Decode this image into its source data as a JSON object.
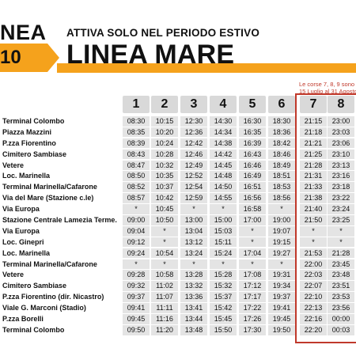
{
  "header": {
    "linea_word": "NEA",
    "badge_number": "10",
    "subtitle": "ATTIVA SOLO NEL PERIODO ESTIVO",
    "title": "LINEA MARE",
    "note_line1": "Le corse 7, 8, 9 sono v",
    "note_line2": "15 Luglio al 31 Agosto",
    "accent_color": "#f5a21c",
    "highlight_color": "#c0392b"
  },
  "columns": [
    "1",
    "2",
    "3",
    "4",
    "5",
    "6",
    "7",
    "8"
  ],
  "stops": [
    "Terminal Colombo",
    "Piazza Mazzini",
    "P.zza Fiorentino",
    "Cimitero Sambiase",
    "Vetere",
    "Loc. Marinella",
    "Terminal  Marinella/Cafarone",
    "Via del Mare (Stazione c.le)",
    "Via Europa",
    "Stazione Centrale Lamezia Terme.",
    "Via Europa",
    "Loc. Ginepri",
    "Loc. Marinella",
    "Terminal  Marinella/Cafarone",
    "Vetere",
    "Cimitero Sambiase",
    "P.zza Fiorentino (dir. Nicastro)",
    "Viale G. Marconi (Stadio)",
    "P.zza Borelli",
    "Terminal Colombo"
  ],
  "times": [
    [
      "08:30",
      "08:35",
      "08:39",
      "08:43",
      "08:47",
      "08:50",
      "08:52",
      "08:57",
      "*",
      "09:00",
      "09:04",
      "09:12",
      "09:24",
      "*",
      "09:28",
      "09:32",
      "09:37",
      "09:41",
      "09:45",
      "09:50"
    ],
    [
      "10:15",
      "10:20",
      "10:24",
      "10:28",
      "10:32",
      "10:35",
      "10:37",
      "10:42",
      "10:45",
      "10:50",
      "*",
      "*",
      "10:54",
      "*",
      "10:58",
      "11:02",
      "11:07",
      "11:11",
      "11:16",
      "11:20"
    ],
    [
      "12:30",
      "12:36",
      "12:42",
      "12:46",
      "12:49",
      "12:52",
      "12:54",
      "12:59",
      "*",
      "13:00",
      "13:04",
      "13:12",
      "13:24",
      "*",
      "13:28",
      "13:32",
      "13:36",
      "13:41",
      "13:44",
      "13:48"
    ],
    [
      "14:30",
      "14:34",
      "14:38",
      "14:42",
      "14:45",
      "14:48",
      "14:50",
      "14:55",
      "*",
      "15:00",
      "15:03",
      "15:11",
      "15:24",
      "*",
      "15:28",
      "15:32",
      "15:37",
      "15:42",
      "15:45",
      "15:50"
    ],
    [
      "16:30",
      "16:35",
      "16:39",
      "16:43",
      "16:46",
      "16:49",
      "16:51",
      "16:56",
      "16:58",
      "17:00",
      "*",
      "*",
      "17:04",
      "*",
      "17:08",
      "17:12",
      "17:17",
      "17:22",
      "17:26",
      "17:30"
    ],
    [
      "18:30",
      "18:36",
      "18:42",
      "18:46",
      "18:49",
      "18:51",
      "18:53",
      "18:56",
      "*",
      "19:00",
      "19:07",
      "19:15",
      "19:27",
      "*",
      "19:31",
      "19:34",
      "19:37",
      "19:41",
      "19:45",
      "19:50"
    ],
    [
      "21:15",
      "21:18",
      "21:21",
      "21:25",
      "21:28",
      "21:31",
      "21:33",
      "21:38",
      "21:40",
      "21:50",
      "*",
      "*",
      "21:53",
      "22:00",
      "22:03",
      "22:07",
      "22:10",
      "22:13",
      "22:16",
      "22:20"
    ],
    [
      "23:00",
      "23:03",
      "23:06",
      "23:10",
      "23:13",
      "23:16",
      "23:18",
      "23:22",
      "23:24",
      "23:25",
      "*",
      "*",
      "21:28",
      "23:45",
      "23:48",
      "23:51",
      "23:53",
      "23:56",
      "00:00",
      "00:03"
    ]
  ]
}
